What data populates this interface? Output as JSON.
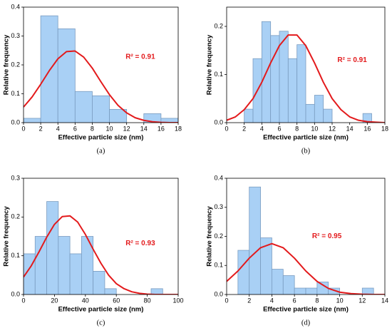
{
  "chart_data": [
    {
      "type": "histogram",
      "label": "(a)",
      "xlabel": "Effective particle size (nm)",
      "ylabel": "Relative frequency",
      "annotation": "R² = 0.91",
      "color": "#a9d0f5",
      "edge_color": "#7a9cc0",
      "bins": [
        0,
        2,
        4,
        6,
        8,
        10,
        12,
        14,
        16,
        18
      ],
      "values": [
        0.015,
        0.37,
        0.325,
        0.108,
        0.093,
        0.046,
        0,
        0.031,
        0.015
      ],
      "line": {
        "color": "#e31a1c",
        "x": [
          0,
          1,
          2,
          3,
          4,
          5,
          6,
          7,
          8,
          9,
          10,
          11,
          12,
          13,
          14,
          15,
          16,
          17,
          18
        ],
        "values": [
          0.054,
          0.089,
          0.133,
          0.18,
          0.221,
          0.246,
          0.248,
          0.227,
          0.189,
          0.142,
          0.097,
          0.06,
          0.034,
          0.017,
          0.008,
          0.003,
          0.001,
          0,
          0
        ]
      },
      "xlim": [
        0,
        18
      ],
      "xticks": [
        0,
        2,
        4,
        6,
        8,
        10,
        12,
        14,
        16,
        18
      ],
      "ylim": [
        0,
        0.4
      ],
      "yticks": [
        {
          "value": 0,
          "label": "0.0"
        },
        0.1,
        0.2,
        0.3,
        0.4
      ]
    },
    {
      "type": "histogram",
      "label": "(b)",
      "xlabel": "Effective particle size (nm)",
      "ylabel": "Relative frequency",
      "annotation": "R² = 0.91",
      "color": "#a9d0f5",
      "edge_color": "#7a9cc0",
      "bins": [
        2,
        3,
        4,
        5,
        6,
        7,
        8,
        9,
        10,
        11,
        12,
        13,
        14,
        15.5,
        16.5
      ],
      "values": [
        0.028,
        0.133,
        0.21,
        0.181,
        0.19,
        0.133,
        0.162,
        0.038,
        0.057,
        0.028,
        0,
        0,
        0,
        0.019
      ],
      "line": {
        "color": "#e31a1c",
        "x": [
          0,
          1,
          2,
          3,
          4,
          5,
          6,
          7,
          8,
          9,
          10,
          11,
          12,
          13,
          14,
          15,
          16,
          17,
          18
        ],
        "values": [
          0.005,
          0.012,
          0.027,
          0.05,
          0.084,
          0.124,
          0.16,
          0.182,
          0.182,
          0.16,
          0.124,
          0.084,
          0.05,
          0.027,
          0.012,
          0.005,
          0.002,
          0.001,
          0
        ]
      },
      "xlim": [
        0,
        18
      ],
      "xticks": [
        0,
        2,
        4,
        6,
        8,
        10,
        12,
        14,
        16,
        18
      ],
      "ylim": [
        0,
        0.24
      ],
      "yticks": [
        {
          "value": 0,
          "label": "0.0"
        },
        0.1,
        0.2
      ]
    },
    {
      "type": "histogram",
      "label": "(c)",
      "xlabel": "Effective particle size (nm)",
      "ylabel": "Relative frequency",
      "annotation": "R² = 0.93",
      "color": "#a9d0f5",
      "edge_color": "#7a9cc0",
      "bins": [
        0,
        7.5,
        15,
        22.5,
        30,
        37.5,
        45,
        52.5,
        60,
        67.5,
        75,
        82.5,
        90
      ],
      "values": [
        0.105,
        0.15,
        0.24,
        0.15,
        0.105,
        0.15,
        0.06,
        0.015,
        0,
        0,
        0,
        0.015
      ],
      "line": {
        "color": "#e31a1c",
        "x": [
          0,
          5,
          10,
          15,
          20,
          25,
          30,
          35,
          40,
          45,
          50,
          55,
          60,
          65,
          70,
          75,
          80,
          85,
          90,
          95,
          100
        ],
        "values": [
          0.045,
          0.074,
          0.11,
          0.148,
          0.181,
          0.201,
          0.203,
          0.187,
          0.155,
          0.117,
          0.081,
          0.05,
          0.028,
          0.015,
          0.007,
          0.003,
          0.001,
          0,
          0,
          0,
          0
        ]
      },
      "xlim": [
        0,
        100
      ],
      "xticks": [
        0,
        20,
        40,
        60,
        80,
        100
      ],
      "ylim": [
        0,
        0.3
      ],
      "yticks": [
        {
          "value": 0,
          "label": "0.0"
        },
        0.1,
        0.2,
        0.3
      ]
    },
    {
      "type": "histogram",
      "label": "(d)",
      "xlabel": "Effective particle size (nm)",
      "ylabel": "Relative frequency",
      "annotation": "R² = 0.95",
      "color": "#a9d0f5",
      "edge_color": "#7a9cc0",
      "bins": [
        1,
        2,
        3,
        4,
        5,
        6,
        7,
        8,
        9,
        10,
        11,
        12,
        13
      ],
      "values": [
        0.152,
        0.37,
        0.195,
        0.087,
        0.065,
        0.022,
        0.022,
        0.043,
        0.022,
        0,
        0,
        0.022
      ],
      "line": {
        "color": "#e31a1c",
        "x": [
          0,
          1,
          2,
          3,
          4,
          5,
          6,
          7,
          8,
          9,
          10,
          11,
          12,
          13,
          14
        ],
        "values": [
          0.045,
          0.081,
          0.125,
          0.161,
          0.175,
          0.161,
          0.125,
          0.081,
          0.045,
          0.021,
          0.008,
          0.003,
          0.001,
          0,
          0
        ]
      },
      "xlim": [
        0,
        14
      ],
      "xticks": [
        0,
        2,
        4,
        6,
        8,
        10,
        12,
        14
      ],
      "ylim": [
        0,
        0.4
      ],
      "yticks": [
        {
          "value": 0,
          "label": "0.0"
        },
        0.1,
        0.2,
        0.3,
        0.4
      ]
    }
  ]
}
